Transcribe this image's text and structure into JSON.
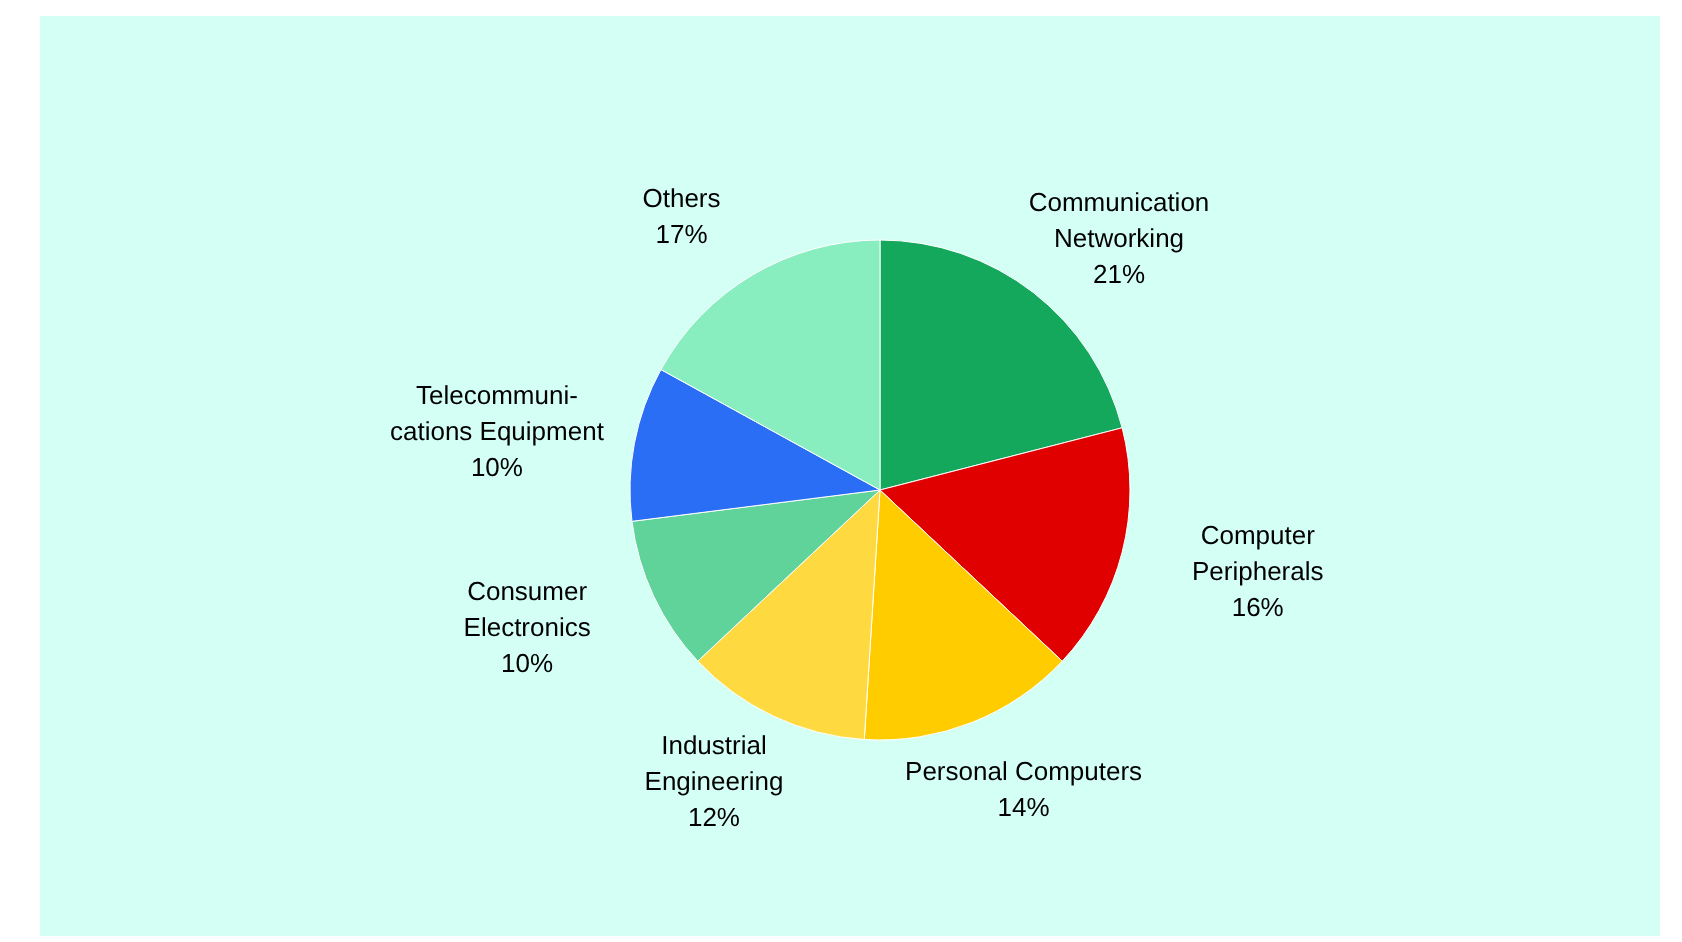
{
  "chart_data": {
    "type": "pie",
    "categories": [
      "Communication\nNetworking",
      "Computer\nPeripherals",
      "Personal Computers",
      "Industrial\nEngineering",
      "Consumer\nElectronics",
      "Telecommuni-\ncations Equipment",
      "Others"
    ],
    "values": [
      21,
      16,
      14,
      12,
      10,
      10,
      17
    ],
    "value_labels": [
      "21%",
      "16%",
      "14%",
      "12%",
      "10%",
      "10%",
      "17%"
    ],
    "colors": [
      "#13a85c",
      "#e00000",
      "#ffcc00",
      "#ffd940",
      "#5fd39a",
      "#2a6ef5",
      "#88eebf"
    ]
  }
}
